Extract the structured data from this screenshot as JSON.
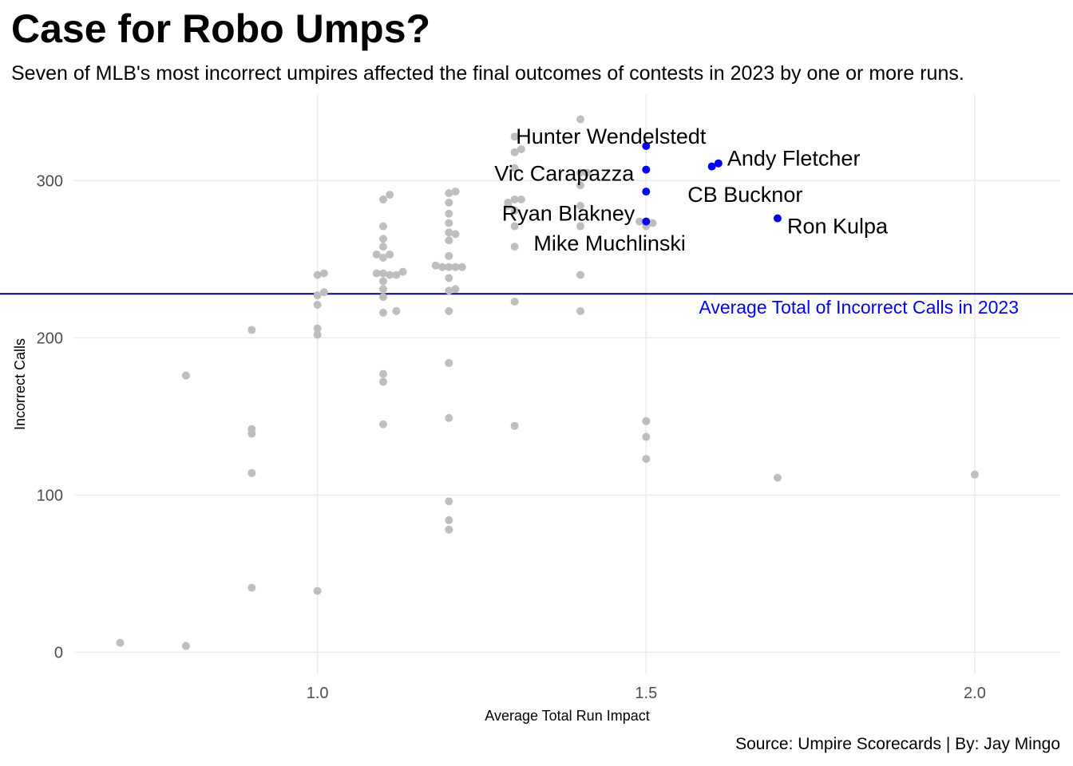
{
  "chart_data": {
    "type": "scatter",
    "title": "Case for Robo Umps?",
    "subtitle": "Seven of MLB's most incorrect umpires affected the final outcomes of contests in 2023 by one or more runs.",
    "caption": "Source: Umpire Scorecards | By: Jay Mingo",
    "xlabel": "Average Total Run Impact",
    "ylabel": "Incorrect Calls",
    "xlim": [
      0.63,
      2.13
    ],
    "ylim": [
      -14,
      355
    ],
    "x_ticks": [
      1.0,
      1.5,
      2.0
    ],
    "x_tick_labels": [
      "1.0",
      "1.5",
      "2.0"
    ],
    "y_ticks": [
      0,
      100,
      200,
      300
    ],
    "y_tick_labels": [
      "0",
      "100",
      "200",
      "300"
    ],
    "grid": true,
    "colors": {
      "other": "#bebebe",
      "highlight": "#0000ff",
      "reference_line": "#000080",
      "reference_label": "#0000ff",
      "grid": "#ebebeb"
    },
    "reference_line": {
      "y": 228,
      "label": "Average Total of Incorrect Calls in 2023"
    },
    "highlighted": [
      {
        "name": "Hunter Wendelstedt",
        "x": 1.5,
        "y": 322
      },
      {
        "name": "Vic Carapazza",
        "x": 1.5,
        "y": 307
      },
      {
        "name": "Andy Fletcher",
        "x": 1.61,
        "y": 311
      },
      {
        "name": "CB Bucknor",
        "x": 1.5,
        "y": 293
      },
      {
        "name": "Ryan Blakney",
        "x": 1.5,
        "y": 274
      },
      {
        "name": "Ron Kulpa",
        "x": 1.7,
        "y": 276
      },
      {
        "name": "Mike Muchlinski",
        "x": 1.6,
        "y": 309
      }
    ],
    "points": [
      {
        "x": 0.7,
        "y": 6
      },
      {
        "x": 0.8,
        "y": 4
      },
      {
        "x": 0.8,
        "y": 176
      },
      {
        "x": 0.9,
        "y": 41
      },
      {
        "x": 0.9,
        "y": 114
      },
      {
        "x": 0.9,
        "y": 139
      },
      {
        "x": 0.9,
        "y": 142
      },
      {
        "x": 0.9,
        "y": 205
      },
      {
        "x": 1.0,
        "y": 39
      },
      {
        "x": 1.0,
        "y": 202
      },
      {
        "x": 1.0,
        "y": 206
      },
      {
        "x": 1.0,
        "y": 221
      },
      {
        "x": 1.0,
        "y": 227
      },
      {
        "x": 1.0,
        "y": 240
      },
      {
        "x": 1.01,
        "y": 229
      },
      {
        "x": 1.01,
        "y": 241
      },
      {
        "x": 1.1,
        "y": 145
      },
      {
        "x": 1.1,
        "y": 172
      },
      {
        "x": 1.1,
        "y": 177
      },
      {
        "x": 1.1,
        "y": 216
      },
      {
        "x": 1.1,
        "y": 226
      },
      {
        "x": 1.1,
        "y": 231
      },
      {
        "x": 1.1,
        "y": 236
      },
      {
        "x": 1.1,
        "y": 241
      },
      {
        "x": 1.1,
        "y": 251
      },
      {
        "x": 1.1,
        "y": 258
      },
      {
        "x": 1.1,
        "y": 263
      },
      {
        "x": 1.1,
        "y": 271
      },
      {
        "x": 1.1,
        "y": 288
      },
      {
        "x": 1.11,
        "y": 291
      },
      {
        "x": 1.11,
        "y": 240
      },
      {
        "x": 1.11,
        "y": 253
      },
      {
        "x": 1.12,
        "y": 217
      },
      {
        "x": 1.12,
        "y": 240
      },
      {
        "x": 1.13,
        "y": 242
      },
      {
        "x": 1.09,
        "y": 241
      },
      {
        "x": 1.09,
        "y": 253
      },
      {
        "x": 1.18,
        "y": 246
      },
      {
        "x": 1.19,
        "y": 245
      },
      {
        "x": 1.2,
        "y": 78
      },
      {
        "x": 1.2,
        "y": 84
      },
      {
        "x": 1.2,
        "y": 96
      },
      {
        "x": 1.2,
        "y": 149
      },
      {
        "x": 1.2,
        "y": 184
      },
      {
        "x": 1.2,
        "y": 217
      },
      {
        "x": 1.2,
        "y": 230
      },
      {
        "x": 1.2,
        "y": 238
      },
      {
        "x": 1.2,
        "y": 245
      },
      {
        "x": 1.2,
        "y": 252
      },
      {
        "x": 1.2,
        "y": 262
      },
      {
        "x": 1.2,
        "y": 267
      },
      {
        "x": 1.2,
        "y": 273
      },
      {
        "x": 1.2,
        "y": 279
      },
      {
        "x": 1.2,
        "y": 286
      },
      {
        "x": 1.2,
        "y": 292
      },
      {
        "x": 1.21,
        "y": 266
      },
      {
        "x": 1.21,
        "y": 231
      },
      {
        "x": 1.21,
        "y": 245
      },
      {
        "x": 1.21,
        "y": 293
      },
      {
        "x": 1.22,
        "y": 245
      },
      {
        "x": 1.3,
        "y": 144
      },
      {
        "x": 1.3,
        "y": 223
      },
      {
        "x": 1.3,
        "y": 258
      },
      {
        "x": 1.3,
        "y": 271
      },
      {
        "x": 1.3,
        "y": 281
      },
      {
        "x": 1.3,
        "y": 288
      },
      {
        "x": 1.3,
        "y": 308
      },
      {
        "x": 1.3,
        "y": 318
      },
      {
        "x": 1.3,
        "y": 328
      },
      {
        "x": 1.31,
        "y": 320
      },
      {
        "x": 1.29,
        "y": 286
      },
      {
        "x": 1.29,
        "y": 284
      },
      {
        "x": 1.31,
        "y": 288
      },
      {
        "x": 1.4,
        "y": 217
      },
      {
        "x": 1.4,
        "y": 240
      },
      {
        "x": 1.4,
        "y": 271
      },
      {
        "x": 1.4,
        "y": 284
      },
      {
        "x": 1.4,
        "y": 297
      },
      {
        "x": 1.4,
        "y": 305
      },
      {
        "x": 1.4,
        "y": 339
      },
      {
        "x": 1.41,
        "y": 305
      },
      {
        "x": 1.5,
        "y": 123
      },
      {
        "x": 1.5,
        "y": 137
      },
      {
        "x": 1.5,
        "y": 147
      },
      {
        "x": 1.5,
        "y": 271
      },
      {
        "x": 1.49,
        "y": 274
      },
      {
        "x": 1.51,
        "y": 273
      },
      {
        "x": 1.7,
        "y": 111
      },
      {
        "x": 2.0,
        "y": 113
      }
    ]
  }
}
